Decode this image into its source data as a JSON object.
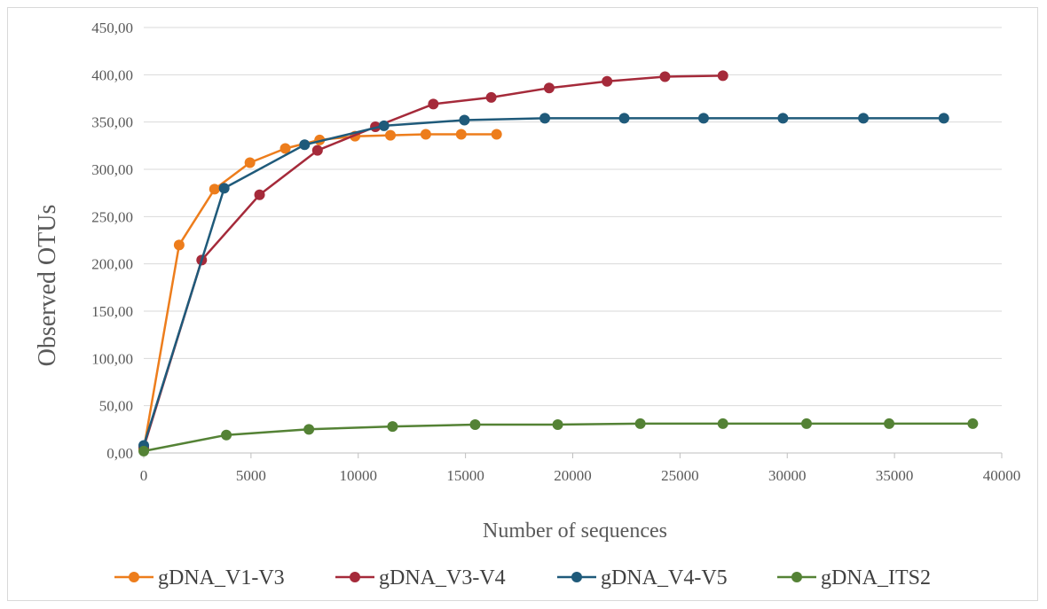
{
  "chart_data": {
    "type": "line",
    "xlabel": "Number of sequences",
    "ylabel": "Observed OTUs",
    "xlim": [
      0,
      40000
    ],
    "ylim": [
      0,
      450
    ],
    "x_ticks": [
      "0",
      "5000",
      "10000",
      "15000",
      "20000",
      "25000",
      "30000",
      "35000",
      "40000"
    ],
    "y_ticks": [
      "0,00",
      "50,00",
      "100,00",
      "150,00",
      "200,00",
      "250,00",
      "300,00",
      "350,00",
      "400,00",
      "450,00"
    ],
    "grid": "horizontal",
    "legend_position": "bottom",
    "series": [
      {
        "name": "gDNA_V1-V3",
        "color": "#ed7d1c",
        "points": [
          [
            1,
            4
          ],
          [
            1650,
            220
          ],
          [
            3300,
            279
          ],
          [
            4950,
            307
          ],
          [
            6600,
            322
          ],
          [
            8200,
            331
          ],
          [
            9850,
            335
          ],
          [
            11500,
            336
          ],
          [
            13150,
            337
          ],
          [
            14800,
            337
          ],
          [
            16450,
            337
          ]
        ]
      },
      {
        "name": "gDNA_V3-V4",
        "color": "#a52a3a",
        "points": [
          [
            1,
            6
          ],
          [
            2700,
            204
          ],
          [
            5400,
            273
          ],
          [
            8100,
            320
          ],
          [
            10800,
            345
          ],
          [
            13500,
            369
          ],
          [
            16200,
            376
          ],
          [
            18900,
            386
          ],
          [
            21600,
            393
          ],
          [
            24300,
            398
          ],
          [
            27000,
            399
          ]
        ]
      },
      {
        "name": "gDNA_V4-V5",
        "color": "#1f5a7a",
        "points": [
          [
            1,
            8
          ],
          [
            3750,
            280
          ],
          [
            7500,
            326
          ],
          [
            11200,
            346
          ],
          [
            14950,
            352
          ],
          [
            18700,
            354
          ],
          [
            22400,
            354
          ],
          [
            26100,
            354
          ],
          [
            29800,
            354
          ],
          [
            33550,
            354
          ],
          [
            37300,
            354
          ]
        ]
      },
      {
        "name": "gDNA_ITS2",
        "color": "#548235",
        "points": [
          [
            1,
            2
          ],
          [
            3850,
            19
          ],
          [
            7700,
            25
          ],
          [
            11600,
            28
          ],
          [
            15450,
            30
          ],
          [
            19300,
            30
          ],
          [
            23150,
            31
          ],
          [
            27000,
            31
          ],
          [
            30900,
            31
          ],
          [
            34750,
            31
          ],
          [
            38650,
            31
          ]
        ]
      }
    ]
  }
}
